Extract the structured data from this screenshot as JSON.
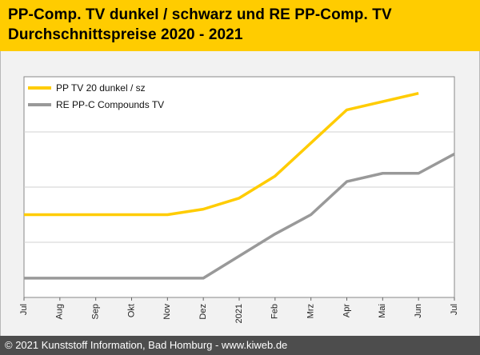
{
  "header": {
    "title_line1": "PP-Comp. TV dunkel / schwarz und RE PP-Comp. TV",
    "title_line2": "Durchschnittspreise 2020 - 2021"
  },
  "footer": {
    "copyright": "© 2021 Kunststoff Information, Bad Homburg - www.kiweb.de"
  },
  "colors": {
    "header_bg": "#ffcc00",
    "series_yellow": "#ffcc00",
    "series_gray": "#999999",
    "footer_bg": "#4d4d4d"
  },
  "chart_data": {
    "type": "line",
    "title": "PP-Comp. TV dunkel / schwarz und RE PP-Comp. TV Durchschnittspreise 2020 - 2021",
    "categories": [
      "Jul",
      "Aug",
      "Sep",
      "Okt",
      "Nov",
      "Dez",
      "2021",
      "Feb",
      "Mrz",
      "Apr",
      "Mai",
      "Jun",
      "Jul"
    ],
    "ylim": [
      0,
      4
    ],
    "y_gridlines": [
      1,
      2,
      3
    ],
    "y_tick_labels_shown": false,
    "legend_position": "top-left",
    "series": [
      {
        "name": "PP TV 20 dunkel / sz",
        "color": "#ffcc00",
        "values": [
          1.5,
          1.5,
          1.5,
          1.5,
          1.5,
          1.6,
          1.8,
          2.2,
          2.8,
          3.4,
          3.55,
          3.7,
          null
        ]
      },
      {
        "name": "RE PP-C Compounds TV",
        "color": "#999999",
        "values": [
          0.35,
          0.35,
          0.35,
          0.35,
          0.35,
          0.35,
          0.75,
          1.15,
          1.5,
          2.1,
          2.25,
          2.25,
          2.6
        ]
      }
    ]
  }
}
